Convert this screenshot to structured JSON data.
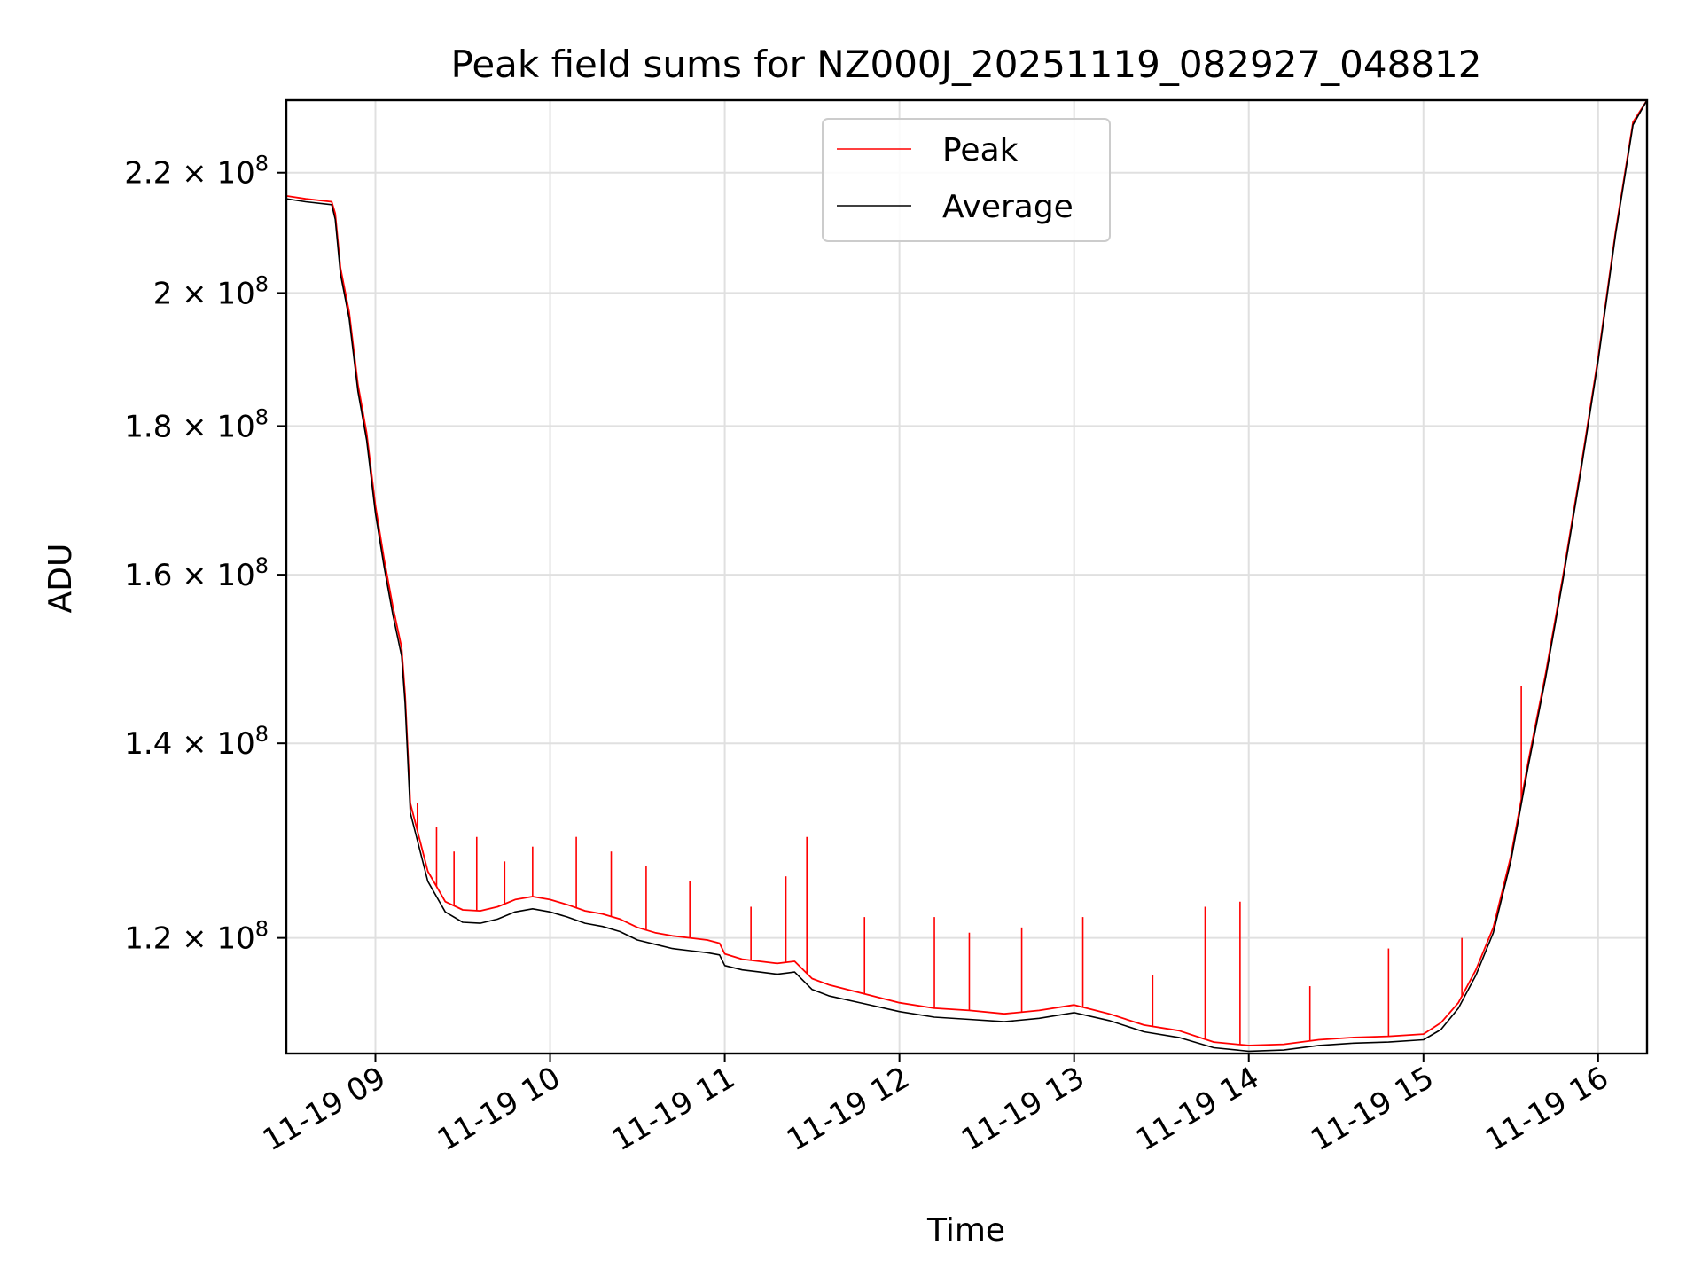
{
  "chart_data": {
    "type": "line",
    "title": "Peak field sums for NZ000J_20251119_082927_048812",
    "xlabel": "Time",
    "ylabel": "ADU",
    "x_unit": "hour of 2025-11-19",
    "xlim": [
      8.49,
      16.28
    ],
    "ylim": [
      109500000.0,
      233000000.0
    ],
    "y_scale": "log",
    "grid": true,
    "legend_position": "upper center",
    "x_ticks": [
      {
        "value": 9,
        "label": "11-19 09"
      },
      {
        "value": 10,
        "label": "11-19 10"
      },
      {
        "value": 11,
        "label": "11-19 11"
      },
      {
        "value": 12,
        "label": "11-19 12"
      },
      {
        "value": 13,
        "label": "11-19 13"
      },
      {
        "value": 14,
        "label": "11-19 14"
      },
      {
        "value": 15,
        "label": "11-19 15"
      },
      {
        "value": 16,
        "label": "11-19 16"
      }
    ],
    "y_ticks": [
      {
        "value": 120000000.0,
        "mantissa": "1.2",
        "base": "10",
        "exp": "8"
      },
      {
        "value": 140000000.0,
        "mantissa": "1.4",
        "base": "10",
        "exp": "8"
      },
      {
        "value": 160000000.0,
        "mantissa": "1.6",
        "base": "10",
        "exp": "8"
      },
      {
        "value": 180000000.0,
        "mantissa": "1.8",
        "base": "10",
        "exp": "8"
      },
      {
        "value": 200000000.0,
        "mantissa": "2",
        "base": "10",
        "exp": "8"
      },
      {
        "value": 220000000.0,
        "mantissa": "2.2",
        "base": "10",
        "exp": "8"
      }
    ],
    "series": [
      {
        "name": "Peak",
        "color": "#ff0000",
        "x": [
          8.49,
          8.6,
          8.75,
          8.77,
          8.8,
          8.85,
          8.9,
          8.95,
          9.0,
          9.05,
          9.1,
          9.15,
          9.17,
          9.2,
          9.3,
          9.4,
          9.5,
          9.6,
          9.7,
          9.8,
          9.9,
          10.0,
          10.1,
          10.2,
          10.3,
          10.4,
          10.5,
          10.6,
          10.7,
          10.8,
          10.9,
          10.97,
          11.0,
          11.1,
          11.2,
          11.3,
          11.4,
          11.5,
          11.6,
          11.8,
          12.0,
          12.2,
          12.4,
          12.6,
          12.8,
          13.0,
          13.2,
          13.4,
          13.6,
          13.8,
          14.0,
          14.2,
          14.4,
          14.6,
          14.8,
          15.0,
          15.1,
          15.2,
          15.3,
          15.4,
          15.5,
          15.6,
          15.7,
          15.8,
          15.9,
          16.0,
          16.1,
          16.2,
          16.28
        ],
        "y": [
          216000000.0,
          215500000.0,
          215000000.0,
          213000000.0,
          204000000.0,
          197000000.0,
          186000000.0,
          179000000.0,
          169000000.0,
          162000000.0,
          156000000.0,
          151000000.0,
          145500000.0,
          133500000.0,
          126500000.0,
          123500000.0,
          122700000.0,
          122600000.0,
          123000000.0,
          123700000.0,
          124000000.0,
          123700000.0,
          123200000.0,
          122600000.0,
          122300000.0,
          121800000.0,
          121000000.0,
          120500000.0,
          120200000.0,
          120000000.0,
          119800000.0,
          119500000.0,
          118500000.0,
          118000000.0,
          117800000.0,
          117600000.0,
          117800000.0,
          116200000.0,
          115600000.0,
          114800000.0,
          114000000.0,
          113500000.0,
          113300000.0,
          113000000.0,
          113300000.0,
          113800000.0,
          113000000.0,
          112000000.0,
          111500000.0,
          110500000.0,
          110200000.0,
          110300000.0,
          110700000.0,
          110900000.0,
          111000000.0,
          111200000.0,
          112200000.0,
          114000000.0,
          117000000.0,
          121000000.0,
          128000000.0,
          138000000.0,
          148000000.0,
          160000000.0,
          174000000.0,
          190000000.0,
          210000000.0,
          229000000.0,
          233000000.0
        ]
      },
      {
        "name": "Average",
        "color": "#000000",
        "x": [
          8.49,
          8.6,
          8.75,
          8.77,
          8.8,
          8.85,
          8.9,
          8.95,
          9.0,
          9.05,
          9.1,
          9.15,
          9.17,
          9.2,
          9.3,
          9.4,
          9.5,
          9.6,
          9.7,
          9.8,
          9.9,
          10.0,
          10.1,
          10.2,
          10.3,
          10.4,
          10.5,
          10.6,
          10.7,
          10.8,
          10.9,
          10.97,
          11.0,
          11.1,
          11.2,
          11.3,
          11.4,
          11.5,
          11.6,
          11.8,
          12.0,
          12.2,
          12.4,
          12.6,
          12.8,
          13.0,
          13.2,
          13.4,
          13.6,
          13.8,
          14.0,
          14.2,
          14.4,
          14.6,
          14.8,
          15.0,
          15.1,
          15.2,
          15.3,
          15.4,
          15.5,
          15.6,
          15.7,
          15.8,
          15.9,
          16.0,
          16.1,
          16.2,
          16.28
        ],
        "y": [
          215500000.0,
          215000000.0,
          214500000.0,
          212000000.0,
          203000000.0,
          196000000.0,
          185000000.0,
          178000000.0,
          168000000.0,
          161000000.0,
          155000000.0,
          150000000.0,
          144500000.0,
          132500000.0,
          125500000.0,
          122500000.0,
          121500000.0,
          121400000.0,
          121800000.0,
          122500000.0,
          122800000.0,
          122500000.0,
          122000000.0,
          121400000.0,
          121100000.0,
          120600000.0,
          119800000.0,
          119400000.0,
          119000000.0,
          118800000.0,
          118600000.0,
          118400000.0,
          117400000.0,
          117000000.0,
          116800000.0,
          116600000.0,
          116800000.0,
          115200000.0,
          114600000.0,
          113900000.0,
          113200000.0,
          112700000.0,
          112500000.0,
          112300000.0,
          112600000.0,
          113100000.0,
          112400000.0,
          111400000.0,
          110900000.0,
          110000000.0,
          109700000.0,
          109800000.0,
          110200000.0,
          110400000.0,
          110500000.0,
          110700000.0,
          111600000.0,
          113500000.0,
          116500000.0,
          120500000.0,
          127500000.0,
          137500000.0,
          147500000.0,
          159500000.0,
          173500000.0,
          189500000.0,
          209500000.0,
          228500000.0,
          233000000.0
        ]
      }
    ],
    "spikes": [
      {
        "x": 9.24,
        "y": 133500000.0
      },
      {
        "x": 9.35,
        "y": 131000000.0
      },
      {
        "x": 9.45,
        "y": 128500000.0
      },
      {
        "x": 9.58,
        "y": 130000000.0
      },
      {
        "x": 9.74,
        "y": 127500000.0
      },
      {
        "x": 9.9,
        "y": 129000000.0
      },
      {
        "x": 10.15,
        "y": 130000000.0
      },
      {
        "x": 10.35,
        "y": 128500000.0
      },
      {
        "x": 10.55,
        "y": 127000000.0
      },
      {
        "x": 10.8,
        "y": 125500000.0
      },
      {
        "x": 11.15,
        "y": 123000000.0
      },
      {
        "x": 11.35,
        "y": 126000000.0
      },
      {
        "x": 11.47,
        "y": 130000000.0
      },
      {
        "x": 11.8,
        "y": 122000000.0
      },
      {
        "x": 12.2,
        "y": 122000000.0
      },
      {
        "x": 12.4,
        "y": 120500000.0
      },
      {
        "x": 12.7,
        "y": 121000000.0
      },
      {
        "x": 13.05,
        "y": 122000000.0
      },
      {
        "x": 13.45,
        "y": 116500000.0
      },
      {
        "x": 13.75,
        "y": 123000000.0
      },
      {
        "x": 13.95,
        "y": 123500000.0
      },
      {
        "x": 14.35,
        "y": 115500000.0
      },
      {
        "x": 14.8,
        "y": 119000000.0
      },
      {
        "x": 15.22,
        "y": 120000000.0
      },
      {
        "x": 15.56,
        "y": 146500000.0
      }
    ]
  }
}
